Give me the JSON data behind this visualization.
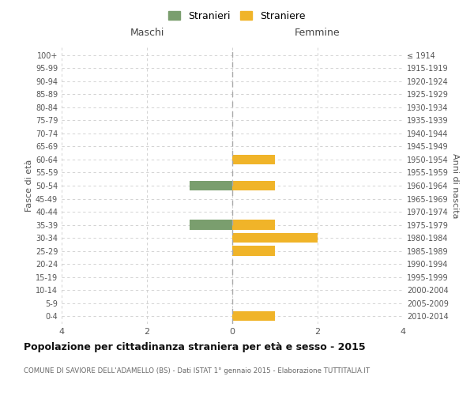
{
  "age_groups": [
    "100+",
    "95-99",
    "90-94",
    "85-89",
    "80-84",
    "75-79",
    "70-74",
    "65-69",
    "60-64",
    "55-59",
    "50-54",
    "45-49",
    "40-44",
    "35-39",
    "30-34",
    "25-29",
    "20-24",
    "15-19",
    "10-14",
    "5-9",
    "0-4"
  ],
  "birth_years": [
    "≤ 1914",
    "1915-1919",
    "1920-1924",
    "1925-1929",
    "1930-1934",
    "1935-1939",
    "1940-1944",
    "1945-1949",
    "1950-1954",
    "1955-1959",
    "1960-1964",
    "1965-1969",
    "1970-1974",
    "1975-1979",
    "1980-1984",
    "1985-1989",
    "1990-1994",
    "1995-1999",
    "2000-2004",
    "2005-2009",
    "2010-2014"
  ],
  "males": [
    0,
    0,
    0,
    0,
    0,
    0,
    0,
    0,
    0,
    0,
    -1,
    0,
    0,
    -1,
    0,
    0,
    0,
    0,
    0,
    0,
    0
  ],
  "females": [
    0,
    0,
    0,
    0,
    0,
    0,
    0,
    0,
    1,
    0,
    1,
    0,
    0,
    1,
    2,
    1,
    0,
    0,
    0,
    0,
    1
  ],
  "male_color": "#7a9e6e",
  "female_color": "#f0b429",
  "title": "Popolazione per cittadinanza straniera per età e sesso - 2015",
  "subtitle": "COMUNE DI SAVIORE DELL'ADAMELLO (BS) - Dati ISTAT 1° gennaio 2015 - Elaborazione TUTTITALIA.IT",
  "xlabel_left": "Maschi",
  "xlabel_right": "Femmine",
  "ylabel_left": "Fasce di età",
  "ylabel_right": "Anni di nascita",
  "legend_males": "Stranieri",
  "legend_females": "Straniere",
  "xlim": [
    -4,
    4
  ],
  "xticks": [
    -4,
    -2,
    0,
    2,
    4
  ],
  "xtick_labels": [
    "4",
    "2",
    "0",
    "2",
    "4"
  ],
  "bg_color": "#ffffff",
  "grid_color": "#cccccc",
  "bar_height": 0.75
}
